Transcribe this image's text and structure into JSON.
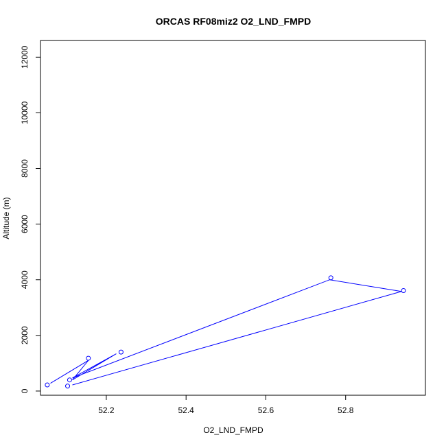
{
  "chart_data": {
    "type": "line",
    "title": "ORCAS RF08miz2 O2_LND_FMPD",
    "xlabel": "O2_LND_FMPD",
    "ylabel": "Altitude (m)",
    "xlim": [
      2.035,
      3.0
    ],
    "ylim": [
      -150,
      12600
    ],
    "x_ticks": [
      2.2,
      2.4,
      2.6,
      2.8
    ],
    "x_tick_labels": [
      "52.2",
      "52.4",
      "52.6",
      "52.8"
    ],
    "y_ticks": [
      0,
      2000,
      4000,
      6000,
      8000,
      10000,
      12000
    ],
    "y_tick_labels": [
      "0",
      "2000",
      "4000",
      "6000",
      "8000",
      "10000",
      "12000"
    ],
    "grid": false,
    "series_color": "#0000ff",
    "line_path": [
      {
        "x": 2.06,
        "y": 280
      },
      {
        "x": 2.155,
        "y": 1100
      },
      {
        "x": 2.115,
        "y": 400
      },
      {
        "x": 2.225,
        "y": 1340
      },
      {
        "x": 2.115,
        "y": 470
      },
      {
        "x": 2.76,
        "y": 4000
      },
      {
        "x": 2.94,
        "y": 3580
      },
      {
        "x": 2.115,
        "y": 220
      }
    ],
    "markers": [
      {
        "x": 2.052,
        "y": 220
      },
      {
        "x": 2.103,
        "y": 180
      },
      {
        "x": 2.108,
        "y": 400
      },
      {
        "x": 2.155,
        "y": 1180
      },
      {
        "x": 2.237,
        "y": 1400
      },
      {
        "x": 2.763,
        "y": 4070
      },
      {
        "x": 2.945,
        "y": 3610
      }
    ]
  }
}
